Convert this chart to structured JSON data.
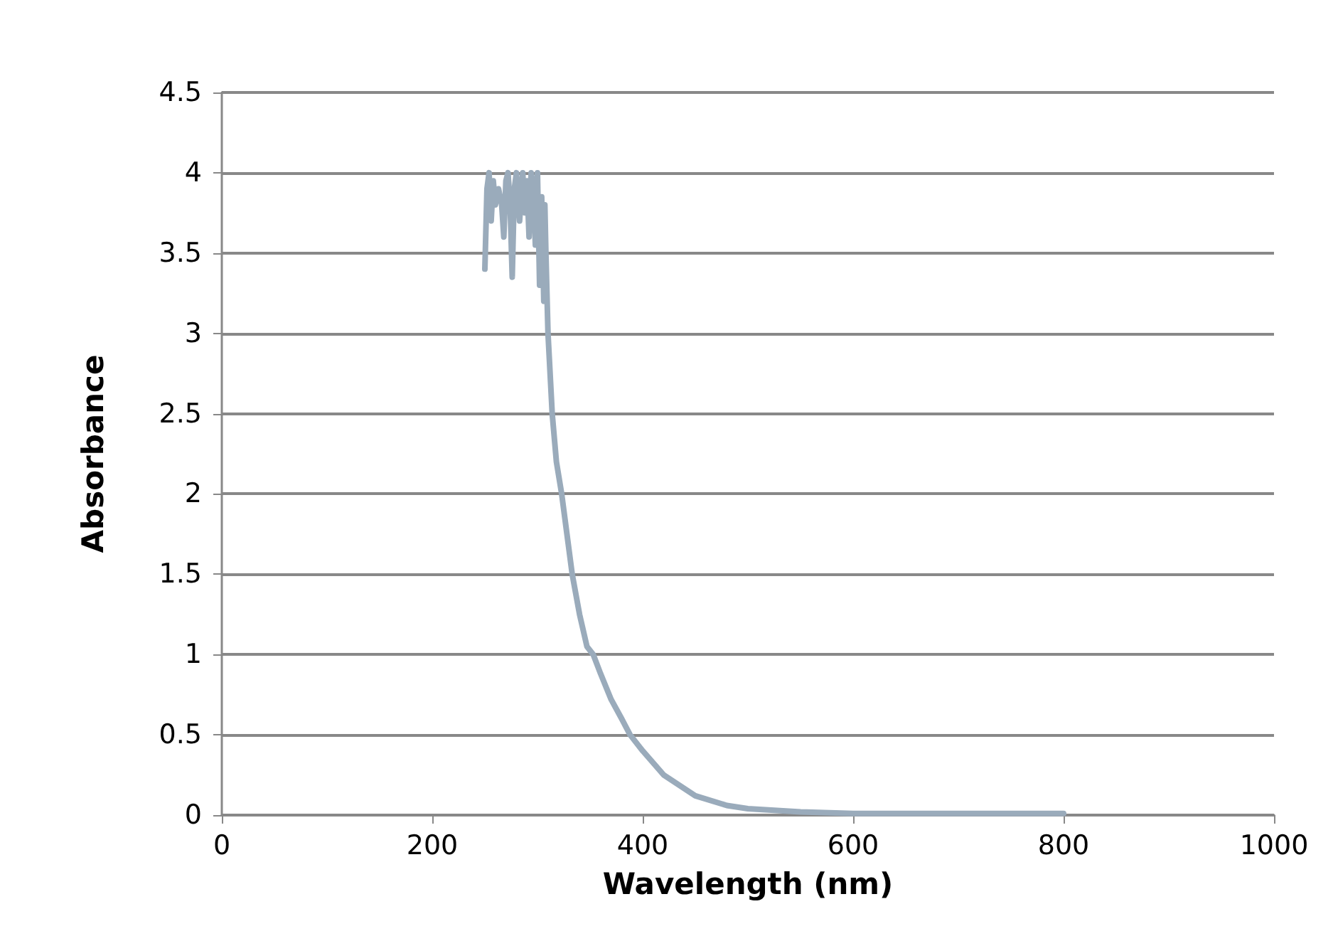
{
  "chart_data": {
    "type": "line",
    "xlabel": "Wavelength (nm)",
    "ylabel": "Absorbance",
    "x": [
      250,
      252,
      254,
      256,
      258,
      260,
      263,
      266,
      268,
      270,
      272,
      274,
      276,
      278,
      280,
      283,
      286,
      288,
      290,
      292,
      294,
      296,
      298,
      300,
      302,
      304,
      306,
      307,
      308,
      310,
      314,
      318,
      323,
      328,
      333,
      340,
      347,
      353,
      360,
      370,
      380,
      388,
      400,
      420,
      450,
      480,
      500,
      550,
      600,
      700,
      800
    ],
    "series": [
      {
        "color": "#9aabbb",
        "values": [
          3.4,
          3.9,
          4.0,
          3.7,
          3.95,
          3.8,
          3.9,
          3.8,
          3.6,
          3.95,
          4.0,
          3.8,
          3.35,
          3.9,
          4.0,
          3.7,
          4.0,
          3.75,
          3.95,
          3.6,
          4.0,
          3.9,
          3.55,
          4.0,
          3.3,
          3.85,
          3.2,
          3.8,
          3.5,
          3.0,
          2.5,
          2.2,
          2.0,
          1.75,
          1.5,
          1.25,
          1.05,
          1.0,
          0.88,
          0.72,
          0.6,
          0.5,
          0.4,
          0.25,
          0.12,
          0.06,
          0.04,
          0.02,
          0.01,
          0.01,
          0.01
        ]
      }
    ],
    "xlim": [
      0,
      1000
    ],
    "xticks": [
      0,
      200,
      400,
      600,
      800,
      1000
    ],
    "ylim": [
      0,
      4.5
    ],
    "yticks": [
      0,
      0.5,
      1,
      1.5,
      2,
      2.5,
      3,
      3.5,
      4,
      4.5
    ],
    "grid": "y",
    "marker": "none",
    "line_style": "solid"
  }
}
